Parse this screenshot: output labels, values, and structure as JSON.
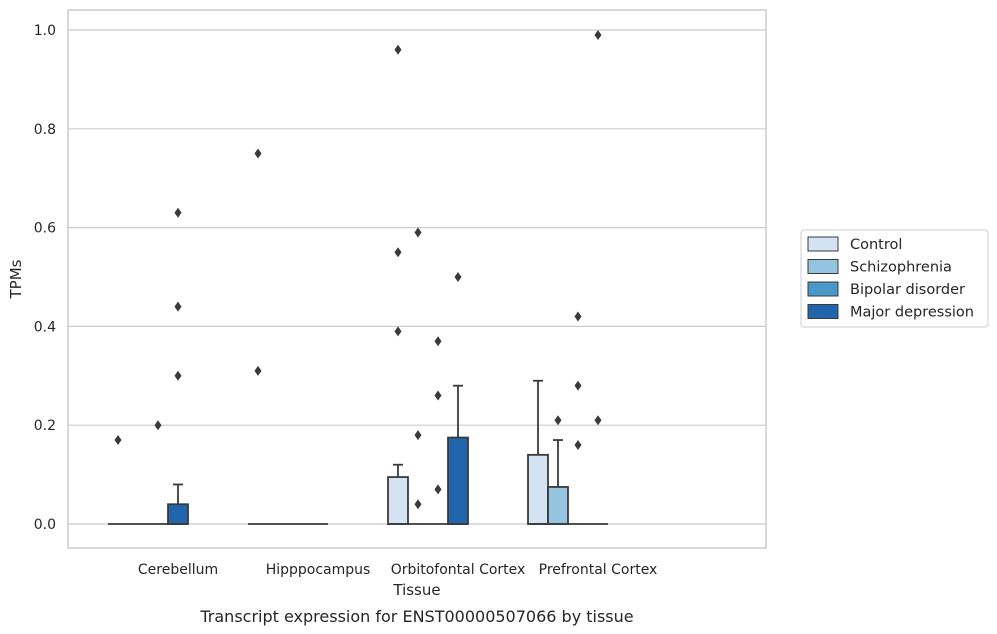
{
  "chart_data": {
    "type": "box",
    "title": "",
    "caption": "Transcript expression for ENST00000507066 by tissue",
    "xlabel": "Tissue",
    "ylabel": "TPMs",
    "ylim": [
      -0.05,
      1.04
    ],
    "yticks": [
      0.0,
      0.2,
      0.4,
      0.6,
      0.8,
      1.0
    ],
    "ytick_labels": [
      "0.0",
      "0.2",
      "0.4",
      "0.6",
      "0.8",
      "1.0"
    ],
    "grid": "horizontal",
    "legend_position": "right",
    "categories": [
      "Cerebellum",
      "Hipppocampus",
      "Orbitofontal Cortex",
      "Prefrontal Cortex"
    ],
    "series": [
      {
        "name": "Control",
        "color": "#d3e3f3",
        "boxes": [
          {
            "q1": 0,
            "median": 0,
            "q3": 0,
            "whisker_low": 0,
            "whisker_high": 0,
            "outliers": [
              0.17
            ]
          },
          {
            "q1": 0,
            "median": 0,
            "q3": 0,
            "whisker_low": 0,
            "whisker_high": 0,
            "outliers": [
              0.31,
              0.75
            ]
          },
          {
            "q1": 0,
            "median": 0,
            "q3": 0.095,
            "whisker_low": 0,
            "whisker_high": 0.12,
            "outliers": [
              0.39,
              0.55,
              0.96
            ]
          },
          {
            "q1": 0,
            "median": 0,
            "q3": 0.14,
            "whisker_low": 0,
            "whisker_high": 0.29,
            "outliers": []
          }
        ]
      },
      {
        "name": "Schizophrenia",
        "color": "#94c4df",
        "boxes": [
          {
            "q1": 0,
            "median": 0,
            "q3": 0,
            "whisker_low": 0,
            "whisker_high": 0,
            "outliers": []
          },
          {
            "q1": 0,
            "median": 0,
            "q3": 0,
            "whisker_low": 0,
            "whisker_high": 0,
            "outliers": []
          },
          {
            "q1": 0,
            "median": 0,
            "q3": 0,
            "whisker_low": 0,
            "whisker_high": 0,
            "outliers": [
              0.04,
              0.18,
              0.59
            ]
          },
          {
            "q1": 0,
            "median": 0,
            "q3": 0.075,
            "whisker_low": 0,
            "whisker_high": 0.17,
            "outliers": [
              0.21
            ]
          }
        ]
      },
      {
        "name": "Bipolar disorder",
        "color": "#4a98c9",
        "boxes": [
          {
            "q1": 0,
            "median": 0,
            "q3": 0,
            "whisker_low": 0,
            "whisker_high": 0,
            "outliers": [
              0.2
            ]
          },
          {
            "q1": 0,
            "median": 0,
            "q3": 0,
            "whisker_low": 0,
            "whisker_high": 0,
            "outliers": []
          },
          {
            "q1": 0,
            "median": 0,
            "q3": 0,
            "whisker_low": 0,
            "whisker_high": 0,
            "outliers": [
              0.07,
              0.26,
              0.37
            ]
          },
          {
            "q1": 0,
            "median": 0,
            "q3": 0,
            "whisker_low": 0,
            "whisker_high": 0,
            "outliers": [
              0.16,
              0.28,
              0.42
            ]
          }
        ]
      },
      {
        "name": "Major depression",
        "color": "#2166ac",
        "boxes": [
          {
            "q1": 0,
            "median": 0,
            "q3": 0.04,
            "whisker_low": 0,
            "whisker_high": 0.08,
            "outliers": [
              0.3,
              0.44,
              0.63
            ]
          },
          {
            "q1": 0,
            "median": 0,
            "q3": 0,
            "whisker_low": 0,
            "whisker_high": 0,
            "outliers": []
          },
          {
            "q1": 0,
            "median": 0,
            "q3": 0.175,
            "whisker_low": 0,
            "whisker_high": 0.28,
            "outliers": [
              0.5
            ]
          },
          {
            "q1": 0,
            "median": 0,
            "q3": 0,
            "whisker_low": 0,
            "whisker_high": 0,
            "outliers": [
              0.21,
              0.99
            ]
          }
        ]
      }
    ]
  }
}
